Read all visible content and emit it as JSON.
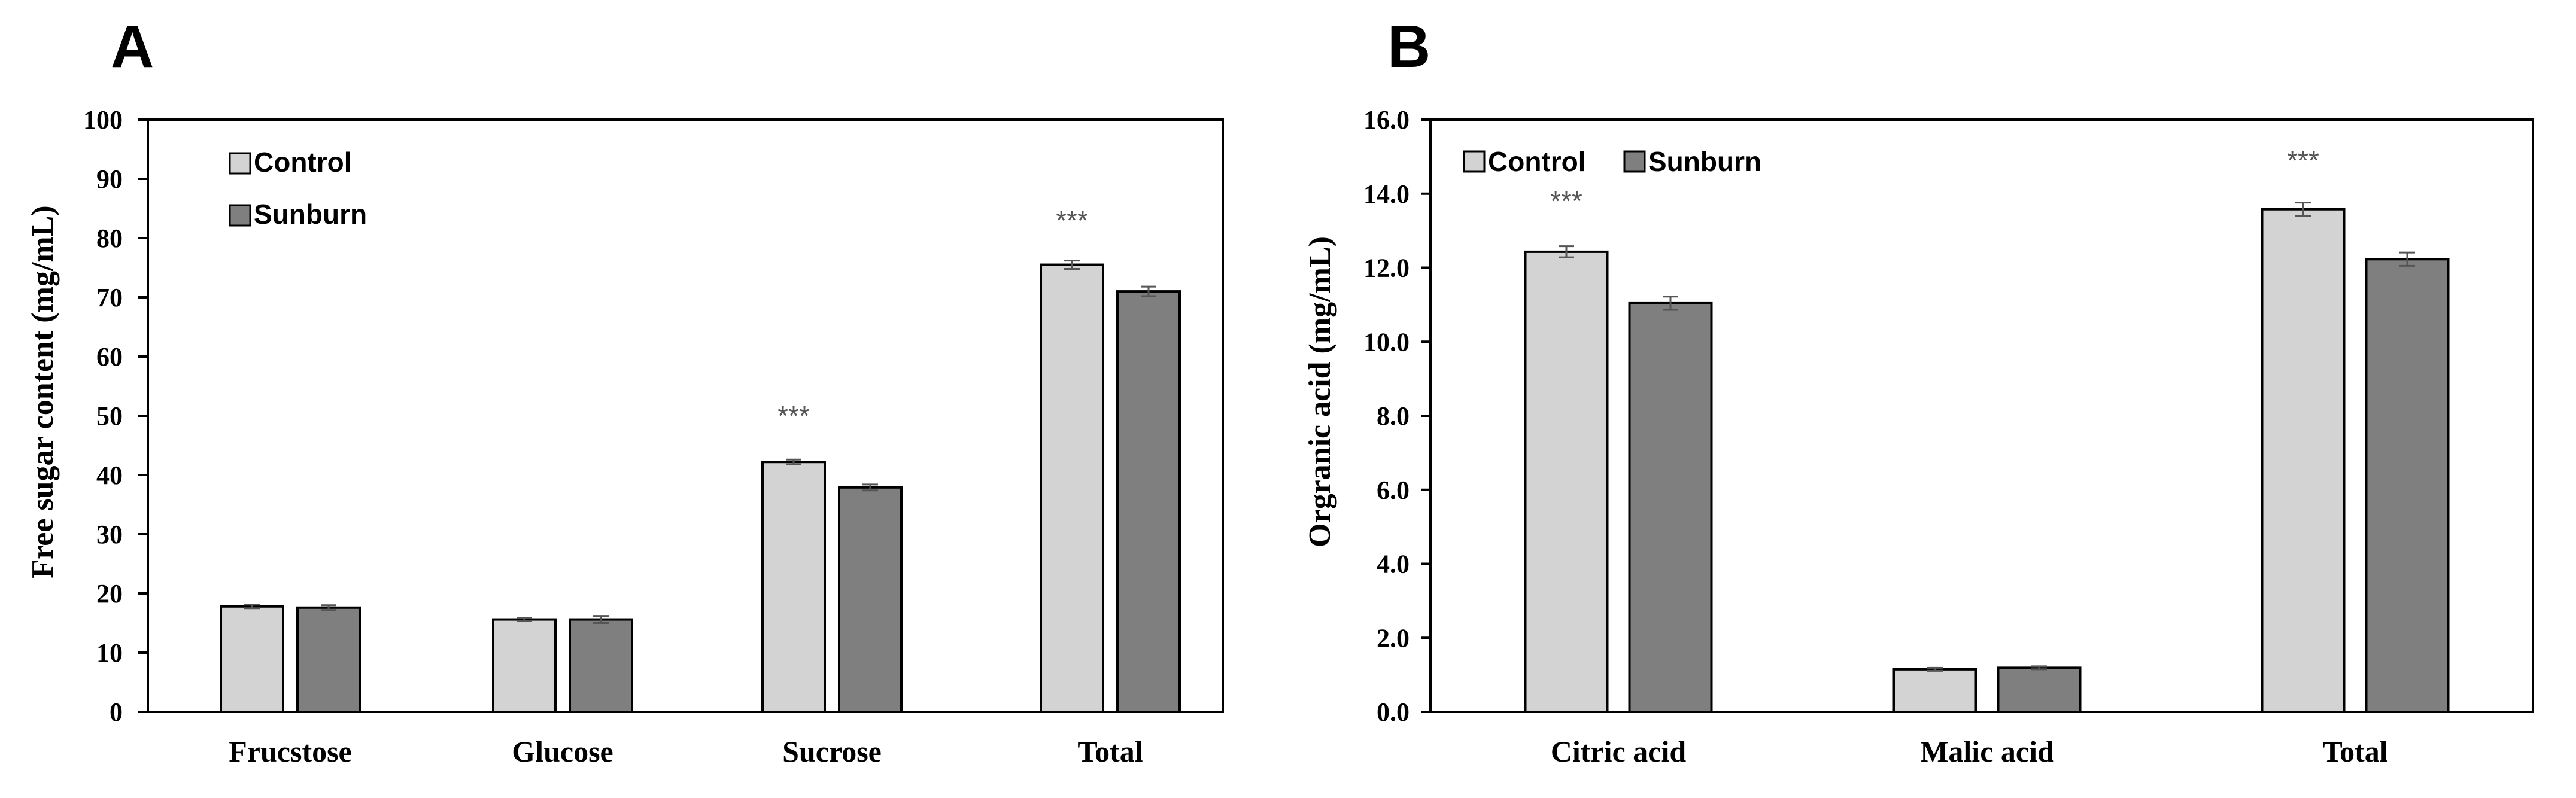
{
  "colors": {
    "control": "#d3d3d3",
    "sunburn": "#7f7f7f",
    "error": "#555555",
    "axis": "#000000"
  },
  "chart_data": [
    {
      "panel": "A",
      "type": "bar",
      "categories": [
        "Frucstose",
        "Glucose",
        "Sucrose",
        "Total"
      ],
      "series": [
        {
          "name": "Control",
          "values": [
            17.8,
            15.6,
            42.2,
            75.5
          ],
          "errors": [
            0.3,
            0.3,
            0.4,
            0.7
          ]
        },
        {
          "name": "Sunburn",
          "values": [
            17.6,
            15.6,
            37.9,
            71.0
          ],
          "errors": [
            0.4,
            0.6,
            0.5,
            0.8
          ]
        }
      ],
      "significance": [
        {
          "category": "Sucrose",
          "label": "***",
          "value": 50
        },
        {
          "category": "Total",
          "label": "***",
          "value": 83
        }
      ],
      "ylabel": "Free sugar content (mg/mL)",
      "xlabel": "",
      "ylim": [
        0,
        100
      ],
      "yticks": [
        0,
        10,
        20,
        30,
        40,
        50,
        60,
        70,
        80,
        90,
        100
      ],
      "ytick_labels": [
        "0",
        "10",
        "20",
        "30",
        "40",
        "50",
        "60",
        "70",
        "80",
        "90",
        "100"
      ],
      "legend": "top-left stacked"
    },
    {
      "panel": "B",
      "type": "bar",
      "categories": [
        "Citric acid",
        "Malic acid",
        "Total"
      ],
      "series": [
        {
          "name": "Control",
          "values": [
            12.43,
            1.15,
            13.58
          ],
          "errors": [
            0.15,
            0.04,
            0.18
          ]
        },
        {
          "name": "Sunburn",
          "values": [
            11.04,
            1.19,
            12.23
          ],
          "errors": [
            0.18,
            0.04,
            0.18
          ]
        }
      ],
      "significance": [
        {
          "category": "Citric acid",
          "label": "***",
          "value": 13.8
        },
        {
          "category": "Total",
          "label": "***",
          "value": 14.9
        }
      ],
      "ylabel": "Orgranic acid (mg/mL)",
      "xlabel": "",
      "ylim": [
        0,
        16
      ],
      "yticks": [
        0,
        2,
        4,
        6,
        8,
        10,
        12,
        14,
        16
      ],
      "ytick_labels": [
        "0.0",
        "2.0",
        "4.0",
        "6.0",
        "8.0",
        "10.0",
        "12.0",
        "14.0",
        "16.0"
      ],
      "legend": "top-left inline"
    }
  ]
}
